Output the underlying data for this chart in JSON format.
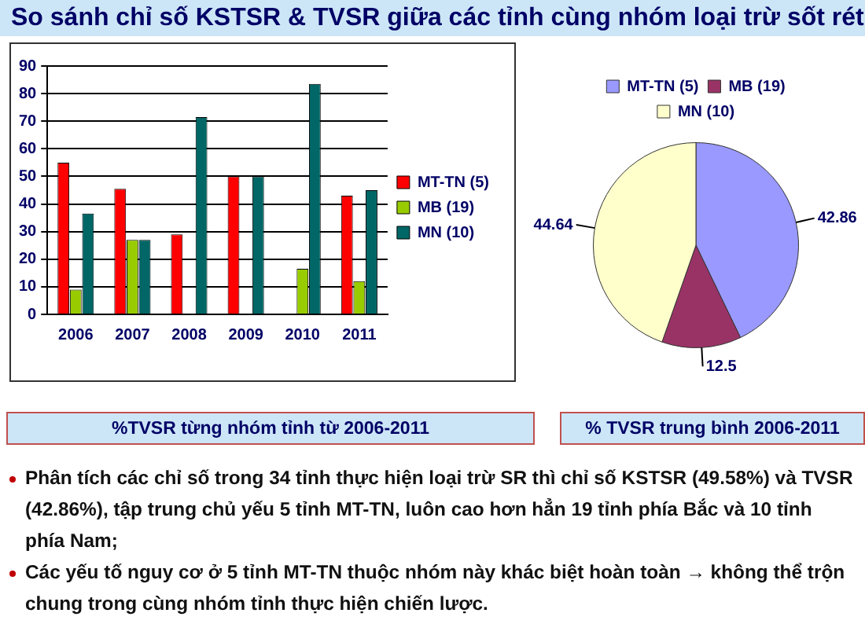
{
  "chart_data": [
    {
      "type": "bar",
      "title": "So sánh chỉ số KSTSR & TVSR giữa các tỉnh cùng nhóm loại trừ sốt rét",
      "categories": [
        "2006",
        "2007",
        "2008",
        "2009",
        "2010",
        "2011"
      ],
      "series": [
        {
          "name": "MT-TN (5)",
          "color": "#ff0000",
          "values": [
            55,
            45.5,
            29,
            50,
            null,
            43
          ]
        },
        {
          "name": "MB (19)",
          "color": "#99cc00",
          "values": [
            9,
            27,
            null,
            null,
            16.5,
            12
          ]
        },
        {
          "name": "MN (10)",
          "color": "#006666",
          "values": [
            36.5,
            27,
            71.5,
            50,
            83.5,
            45
          ]
        }
      ],
      "ylim": [
        0,
        90
      ],
      "yticks": [
        0,
        10,
        20,
        30,
        40,
        50,
        60,
        70,
        80,
        90
      ],
      "grid": "y",
      "legend": "right",
      "annotations": [
        "%TVSR từng nhóm tỉnh từ 2006-2011",
        "Phân tích các chỉ số trong 34 tỉnh thực hiện loại trừ SR thì chỉ số KSTSR (49.58%) và TVSR (42.86%), tập trung chủ yếu 5 tỉnh MT-TN, luôn cao hơn hẳn 19 tỉnh phía Bắc và 10 tỉnh phía Nam;",
        "Các yếu tố nguy cơ ở 5 tỉnh MT-TN thuộc nhóm này khác biệt hoàn toàn → không thể trộn chung trong cùng nhóm tỉnh thực hiện chiến lược."
      ]
    },
    {
      "type": "pie",
      "categories": [
        "MT-TN (5)",
        "MB (19)",
        "MN (10)"
      ],
      "values": [
        42.86,
        12.5,
        44.64
      ],
      "colors": [
        "#9999ff",
        "#993366",
        "#ffffcc"
      ],
      "data_labels": true,
      "legend": "top",
      "annotations": [
        "% TVSR trung bình 2006-2011"
      ]
    }
  ]
}
